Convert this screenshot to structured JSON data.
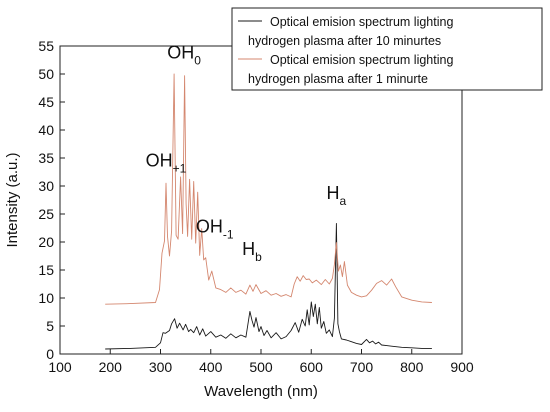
{
  "chart_data": {
    "type": "line",
    "xlabel": "Wavelength (nm)",
    "ylabel": "Intensity (a.u.)",
    "xlim": [
      100,
      900
    ],
    "ylim": [
      0,
      55
    ],
    "xticks": [
      "100",
      "200",
      "300",
      "400",
      "500",
      "600",
      "700",
      "800",
      "900"
    ],
    "yticks": [
      "0",
      "5",
      "10",
      "15",
      "20",
      "25",
      "30",
      "35",
      "40",
      "45",
      "50",
      "55"
    ],
    "grid": false,
    "legend_position": "top-right",
    "series": [
      {
        "name": "Optical emision spectrum lighting hydrogen plasma after 10 minurtes",
        "color": "#1a1a1a",
        "x": [
          190,
          240,
          290,
          300,
          305,
          310,
          318,
          322,
          328,
          333,
          338,
          345,
          350,
          356,
          360,
          366,
          372,
          378,
          384,
          390,
          400,
          410,
          420,
          430,
          440,
          450,
          460,
          470,
          478,
          482,
          486,
          490,
          496,
          500,
          506,
          512,
          520,
          530,
          540,
          550,
          560,
          568,
          575,
          582,
          588,
          592,
          596,
          600,
          604,
          608,
          612,
          616,
          620,
          625,
          630,
          636,
          642,
          646,
          650,
          653,
          656,
          660,
          670,
          680,
          690,
          700,
          710,
          716,
          722,
          728,
          734,
          740,
          750,
          760,
          780,
          800,
          820,
          840
        ],
        "y": [
          0.9,
          1.0,
          1.2,
          2.0,
          3.8,
          3.7,
          4.2,
          5.4,
          6.3,
          4.6,
          5.5,
          4.3,
          5.3,
          4.0,
          4.4,
          3.8,
          4.9,
          3.4,
          4.5,
          3.2,
          4.0,
          3.0,
          3.4,
          2.8,
          3.6,
          2.9,
          3.4,
          3.0,
          7.6,
          6.0,
          4.8,
          6.5,
          4.0,
          4.9,
          3.3,
          4.2,
          2.9,
          3.8,
          2.7,
          3.1,
          4.2,
          5.6,
          3.9,
          6.2,
          5.0,
          7.9,
          5.2,
          9.3,
          6.7,
          8.9,
          5.4,
          8.3,
          4.6,
          5.8,
          3.7,
          4.3,
          3.1,
          6.4,
          23.3,
          5.4,
          4.0,
          2.7,
          2.5,
          2.2,
          1.9,
          1.7,
          2.6,
          2.0,
          2.3,
          1.8,
          2.1,
          1.6,
          1.5,
          1.4,
          1.2,
          1.1,
          1.0,
          1.0
        ]
      },
      {
        "name": "Optical emision spectrum lighting hydrogen plasma after 1 minurte",
        "color": "#d4876f",
        "x": [
          190,
          240,
          290,
          298,
          303,
          308,
          311,
          314,
          318,
          322,
          327,
          331,
          335,
          340,
          344,
          348,
          351,
          354,
          358,
          362,
          366,
          370,
          374,
          378,
          382,
          386,
          390,
          396,
          402,
          410,
          420,
          430,
          440,
          450,
          460,
          470,
          478,
          484,
          490,
          500,
          510,
          520,
          530,
          540,
          550,
          560,
          566,
          572,
          578,
          584,
          590,
          596,
          602,
          610,
          620,
          628,
          636,
          642,
          646,
          650,
          654,
          658,
          662,
          666,
          672,
          680,
          690,
          700,
          710,
          720,
          730,
          740,
          750,
          760,
          768,
          780,
          800,
          820,
          840
        ],
        "y": [
          8.9,
          9.0,
          9.2,
          11.5,
          18.0,
          20.2,
          30.5,
          21.0,
          17.5,
          22.0,
          50.0,
          21.2,
          20.5,
          31.6,
          21.5,
          49.7,
          26.8,
          21.0,
          31.2,
          20.5,
          30.8,
          19.8,
          28.9,
          17.6,
          22.4,
          16.8,
          17.2,
          13.2,
          14.8,
          11.8,
          11.5,
          11.0,
          11.8,
          11.0,
          11.4,
          10.7,
          12.3,
          11.2,
          12.4,
          10.8,
          11.3,
          10.5,
          10.8,
          10.3,
          10.6,
          10.2,
          12.5,
          13.8,
          13.0,
          14.0,
          13.3,
          13.4,
          12.7,
          13.2,
          12.4,
          13.3,
          12.5,
          13.5,
          16.0,
          19.9,
          14.8,
          15.9,
          13.8,
          16.5,
          12.3,
          11.0,
          10.5,
          10.2,
          10.4,
          11.4,
          12.6,
          13.1,
          12.3,
          13.4,
          12.0,
          10.2,
          9.6,
          9.3,
          9.2
        ]
      }
    ],
    "annotations": [
      {
        "base": "OH",
        "sub": "+1",
        "x": 311,
        "y": 33.5
      },
      {
        "base": "OH",
        "sub": "0",
        "x": 347,
        "y": 52.8
      },
      {
        "base": "OH",
        "sub": "-1",
        "x": 408,
        "y": 21.7
      },
      {
        "base": "H",
        "sub": "b",
        "x": 482,
        "y": 17.7
      },
      {
        "base": "H",
        "sub": "a",
        "x": 650,
        "y": 27.7
      }
    ]
  }
}
